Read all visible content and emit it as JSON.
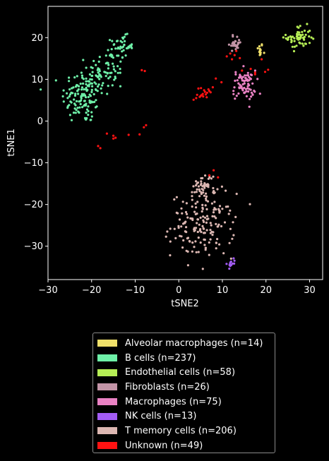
{
  "chart_data": {
    "type": "scatter",
    "xlabel": "tSNE2",
    "ylabel": "tSNE1",
    "xlim": [
      -30,
      33
    ],
    "ylim": [
      -38,
      27.5
    ],
    "xticks": [
      -30,
      -20,
      -10,
      0,
      10,
      20,
      30
    ],
    "yticks": [
      -30,
      -20,
      -10,
      0,
      10,
      20
    ],
    "grid": false,
    "legend_position": "below",
    "series": [
      {
        "name": "Alveolar macrophages (n=14)",
        "color": "#f0e06a",
        "clusters": [
          {
            "cx": 18.6,
            "cy": 17.0,
            "sx": 0.35,
            "sy": 0.9,
            "n": 14
          }
        ]
      },
      {
        "name": "B cells (n=237)",
        "color": "#6ef0a8",
        "clusters": [
          {
            "cx": -22.0,
            "cy": 6.0,
            "sx": 2.4,
            "sy": 3.3,
            "n": 130
          },
          {
            "cx": -16.5,
            "cy": 12.0,
            "sx": 2.2,
            "sy": 2.6,
            "n": 67
          },
          {
            "cx": -13.0,
            "cy": 18.0,
            "sx": 1.3,
            "sy": 1.2,
            "n": 40
          }
        ]
      },
      {
        "name": "Endothelial cells (n=58)",
        "color": "#b6ee55",
        "clusters": [
          {
            "cx": 27.5,
            "cy": 20.0,
            "sx": 1.4,
            "sy": 1.4,
            "n": 58
          }
        ]
      },
      {
        "name": "Fibroblasts (n=26)",
        "color": "#c495a8",
        "clusters": [
          {
            "cx": 13.0,
            "cy": 18.8,
            "sx": 0.7,
            "sy": 1.0,
            "n": 26
          }
        ]
      },
      {
        "name": "Macrophages (n=75)",
        "color": "#ea82c4",
        "clusters": [
          {
            "cx": 15.0,
            "cy": 8.6,
            "sx": 1.3,
            "sy": 1.8,
            "n": 75
          }
        ]
      },
      {
        "name": "NK cells (n=13)",
        "color": "#a35cf5",
        "clusters": [
          {
            "cx": 12.0,
            "cy": -34.0,
            "sx": 0.5,
            "sy": 0.6,
            "n": 13
          }
        ]
      },
      {
        "name": "T memory cells (n=206)",
        "color": "#dcb7b2",
        "clusters": [
          {
            "cx": 5.5,
            "cy": -25.0,
            "sx": 3.6,
            "sy": 3.8,
            "n": 160
          },
          {
            "cx": 6.0,
            "cy": -15.5,
            "sx": 1.3,
            "sy": 1.6,
            "n": 46
          }
        ]
      },
      {
        "name": "Unknown (n=49)",
        "color": "#ff1212",
        "points": [
          [
            4,
            5.5
          ],
          [
            5,
            6
          ],
          [
            5.5,
            6.5
          ],
          [
            6,
            7
          ],
          [
            6.5,
            6.8
          ],
          [
            7,
            7.2
          ],
          [
            4.5,
            7.8
          ],
          [
            5.2,
            6.2
          ],
          [
            6.2,
            6.4
          ],
          [
            5.8,
            7.4
          ],
          [
            4.8,
            5.8
          ],
          [
            7.3,
            6.9
          ],
          [
            3.4,
            5.1
          ],
          [
            6.8,
            7.6
          ],
          [
            5.6,
            5.9
          ],
          [
            4.2,
            6.3
          ],
          [
            5.1,
            7.9
          ],
          [
            6.4,
            5.7
          ],
          [
            -8.5,
            12.2
          ],
          [
            -7.8,
            12.0
          ],
          [
            -8,
            -1.5
          ],
          [
            -7.5,
            -1
          ],
          [
            -9,
            -3.2
          ],
          [
            -11.5,
            -3.3
          ],
          [
            -15,
            -3.5
          ],
          [
            -15,
            -4.2
          ],
          [
            -14.5,
            -4
          ],
          [
            -16.5,
            -3
          ],
          [
            -18.5,
            -6
          ],
          [
            -18,
            -6.5
          ],
          [
            8,
            -11.8
          ],
          [
            9,
            -13.5
          ],
          [
            7,
            -13
          ],
          [
            11,
            15.5
          ],
          [
            12.2,
            14.8
          ],
          [
            12.8,
            15.8
          ],
          [
            14,
            15.1
          ],
          [
            17.5,
            11.2
          ],
          [
            17.5,
            11.6
          ],
          [
            20.5,
            12.3
          ],
          [
            19,
            14.8
          ],
          [
            8.5,
            10.2
          ],
          [
            14.5,
            12.1
          ],
          [
            9.8,
            9.3
          ],
          [
            11.8,
            16.2
          ],
          [
            16.5,
            12.5
          ],
          [
            19.8,
            11.8
          ],
          [
            7.8,
            8.1
          ],
          [
            13.2,
            16.8
          ]
        ]
      }
    ]
  }
}
